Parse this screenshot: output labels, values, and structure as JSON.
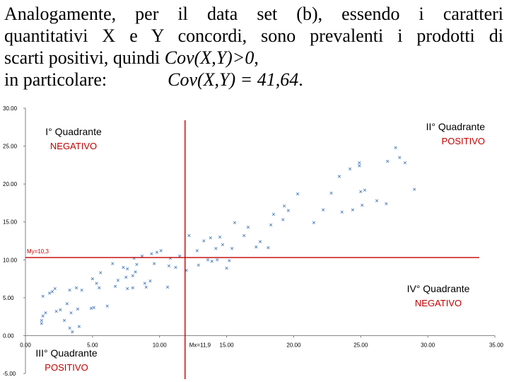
{
  "heading": {
    "line1": "Analogamente, per il data set (b), essendo i caratteri",
    "line2": "quantitativi X e Y concordi, sono prevalenti i prodotti di",
    "line3_a": "scarti positivi, quindi ",
    "line3_b": "Cov(X,Y)>0",
    "line3_c": ",",
    "line4_a": "in particolare:",
    "line4_b": "Cov(X,Y) = 41,64",
    "line4_c": "."
  },
  "colors": {
    "points": "#4f81bd",
    "quadrant_lines": "#c00000",
    "negative_label": "#c00000",
    "positive_label": "#c00000",
    "quadrant_title": "#000000",
    "axis": "#808080"
  },
  "chart_data": {
    "type": "scatter",
    "xlim": [
      0,
      35
    ],
    "ylim": [
      -5,
      30
    ],
    "x_ticks": [
      "0.00",
      "5.00",
      "10.00",
      "15.00",
      "20.00",
      "25.00",
      "30.00",
      "35.00"
    ],
    "y_ticks": [
      "-5.00",
      "0.00",
      "5.00",
      "10.00",
      "15.00",
      "20.00",
      "25.00",
      "30.00"
    ],
    "grid": false,
    "mean_x": 11.9,
    "mean_y": 10.3,
    "mean_x_label": "Mx=11,9",
    "mean_y_label": "My=10,3",
    "quadrants": [
      {
        "title": "I° Quadrante",
        "sign": "NEGATIVO",
        "position": "top-left"
      },
      {
        "title": "II° Quadrante",
        "sign": "POSITIVO",
        "position": "top-right"
      },
      {
        "title": "III° Quadrante",
        "sign": "POSITIVO",
        "position": "bottom-left"
      },
      {
        "title": "IV° Quadrante",
        "sign": "NEGATIVO",
        "position": "bottom-right"
      }
    ],
    "points": [
      [
        1.2,
        2.0
      ],
      [
        1.3,
        2.6
      ],
      [
        1.2,
        1.6
      ],
      [
        1.5,
        3.0
      ],
      [
        1.3,
        5.2
      ],
      [
        1.8,
        5.6
      ],
      [
        2.0,
        5.8
      ],
      [
        2.2,
        6.2
      ],
      [
        2.3,
        3.2
      ],
      [
        2.6,
        3.4
      ],
      [
        2.9,
        2.0
      ],
      [
        3.1,
        4.2
      ],
      [
        3.3,
        1.0
      ],
      [
        3.4,
        3.0
      ],
      [
        3.5,
        0.5
      ],
      [
        3.3,
        6.0
      ],
      [
        3.8,
        6.3
      ],
      [
        4.0,
        1.2
      ],
      [
        3.9,
        3.5
      ],
      [
        4.2,
        6.0
      ],
      [
        4.9,
        3.6
      ],
      [
        5.1,
        3.7
      ],
      [
        5.0,
        7.5
      ],
      [
        5.3,
        6.9
      ],
      [
        5.5,
        6.3
      ],
      [
        5.6,
        8.3
      ],
      [
        6.1,
        3.9
      ],
      [
        6.5,
        9.5
      ],
      [
        6.7,
        6.5
      ],
      [
        6.9,
        7.3
      ],
      [
        7.3,
        9.0
      ],
      [
        7.5,
        7.7
      ],
      [
        7.6,
        6.2
      ],
      [
        7.6,
        8.8
      ],
      [
        8.0,
        7.9
      ],
      [
        8.1,
        10.2
      ],
      [
        8.2,
        8.4
      ],
      [
        8.0,
        6.3
      ],
      [
        8.3,
        9.4
      ],
      [
        8.7,
        10.5
      ],
      [
        8.9,
        6.9
      ],
      [
        9.0,
        6.4
      ],
      [
        9.3,
        7.2
      ],
      [
        9.6,
        9.5
      ],
      [
        9.4,
        10.8
      ],
      [
        9.8,
        11.0
      ],
      [
        10.1,
        11.2
      ],
      [
        10.6,
        6.4
      ],
      [
        10.7,
        9.2
      ],
      [
        10.8,
        10.2
      ],
      [
        11.2,
        9.0
      ],
      [
        11.5,
        10.5
      ],
      [
        12.0,
        8.6
      ],
      [
        12.2,
        13.2
      ],
      [
        12.8,
        11.2
      ],
      [
        12.9,
        9.3
      ],
      [
        13.3,
        12.5
      ],
      [
        13.6,
        10.0
      ],
      [
        13.9,
        9.8
      ],
      [
        13.8,
        12.9
      ],
      [
        14.3,
        10.0
      ],
      [
        14.2,
        11.5
      ],
      [
        14.5,
        13.0
      ],
      [
        14.7,
        12.0
      ],
      [
        15.0,
        8.9
      ],
      [
        15.2,
        9.9
      ],
      [
        15.4,
        11.5
      ],
      [
        15.6,
        14.9
      ],
      [
        16.3,
        13.2
      ],
      [
        16.6,
        14.3
      ],
      [
        17.2,
        11.7
      ],
      [
        17.5,
        12.4
      ],
      [
        18.1,
        11.6
      ],
      [
        18.3,
        14.6
      ],
      [
        18.5,
        16.0
      ],
      [
        19.2,
        15.3
      ],
      [
        19.6,
        16.5
      ],
      [
        19.3,
        17.1
      ],
      [
        20.3,
        18.7
      ],
      [
        21.5,
        14.9
      ],
      [
        22.2,
        16.6
      ],
      [
        22.8,
        18.8
      ],
      [
        23.4,
        21.0
      ],
      [
        23.6,
        16.3
      ],
      [
        24.2,
        22.0
      ],
      [
        24.4,
        16.6
      ],
      [
        24.9,
        22.4
      ],
      [
        24.9,
        22.8
      ],
      [
        25.0,
        19.0
      ],
      [
        25.1,
        17.2
      ],
      [
        25.3,
        19.2
      ],
      [
        26.2,
        17.8
      ],
      [
        26.9,
        17.4
      ],
      [
        27.0,
        23.0
      ],
      [
        27.9,
        23.5
      ],
      [
        27.6,
        24.8
      ],
      [
        28.3,
        22.8
      ],
      [
        29.0,
        19.3
      ]
    ]
  }
}
